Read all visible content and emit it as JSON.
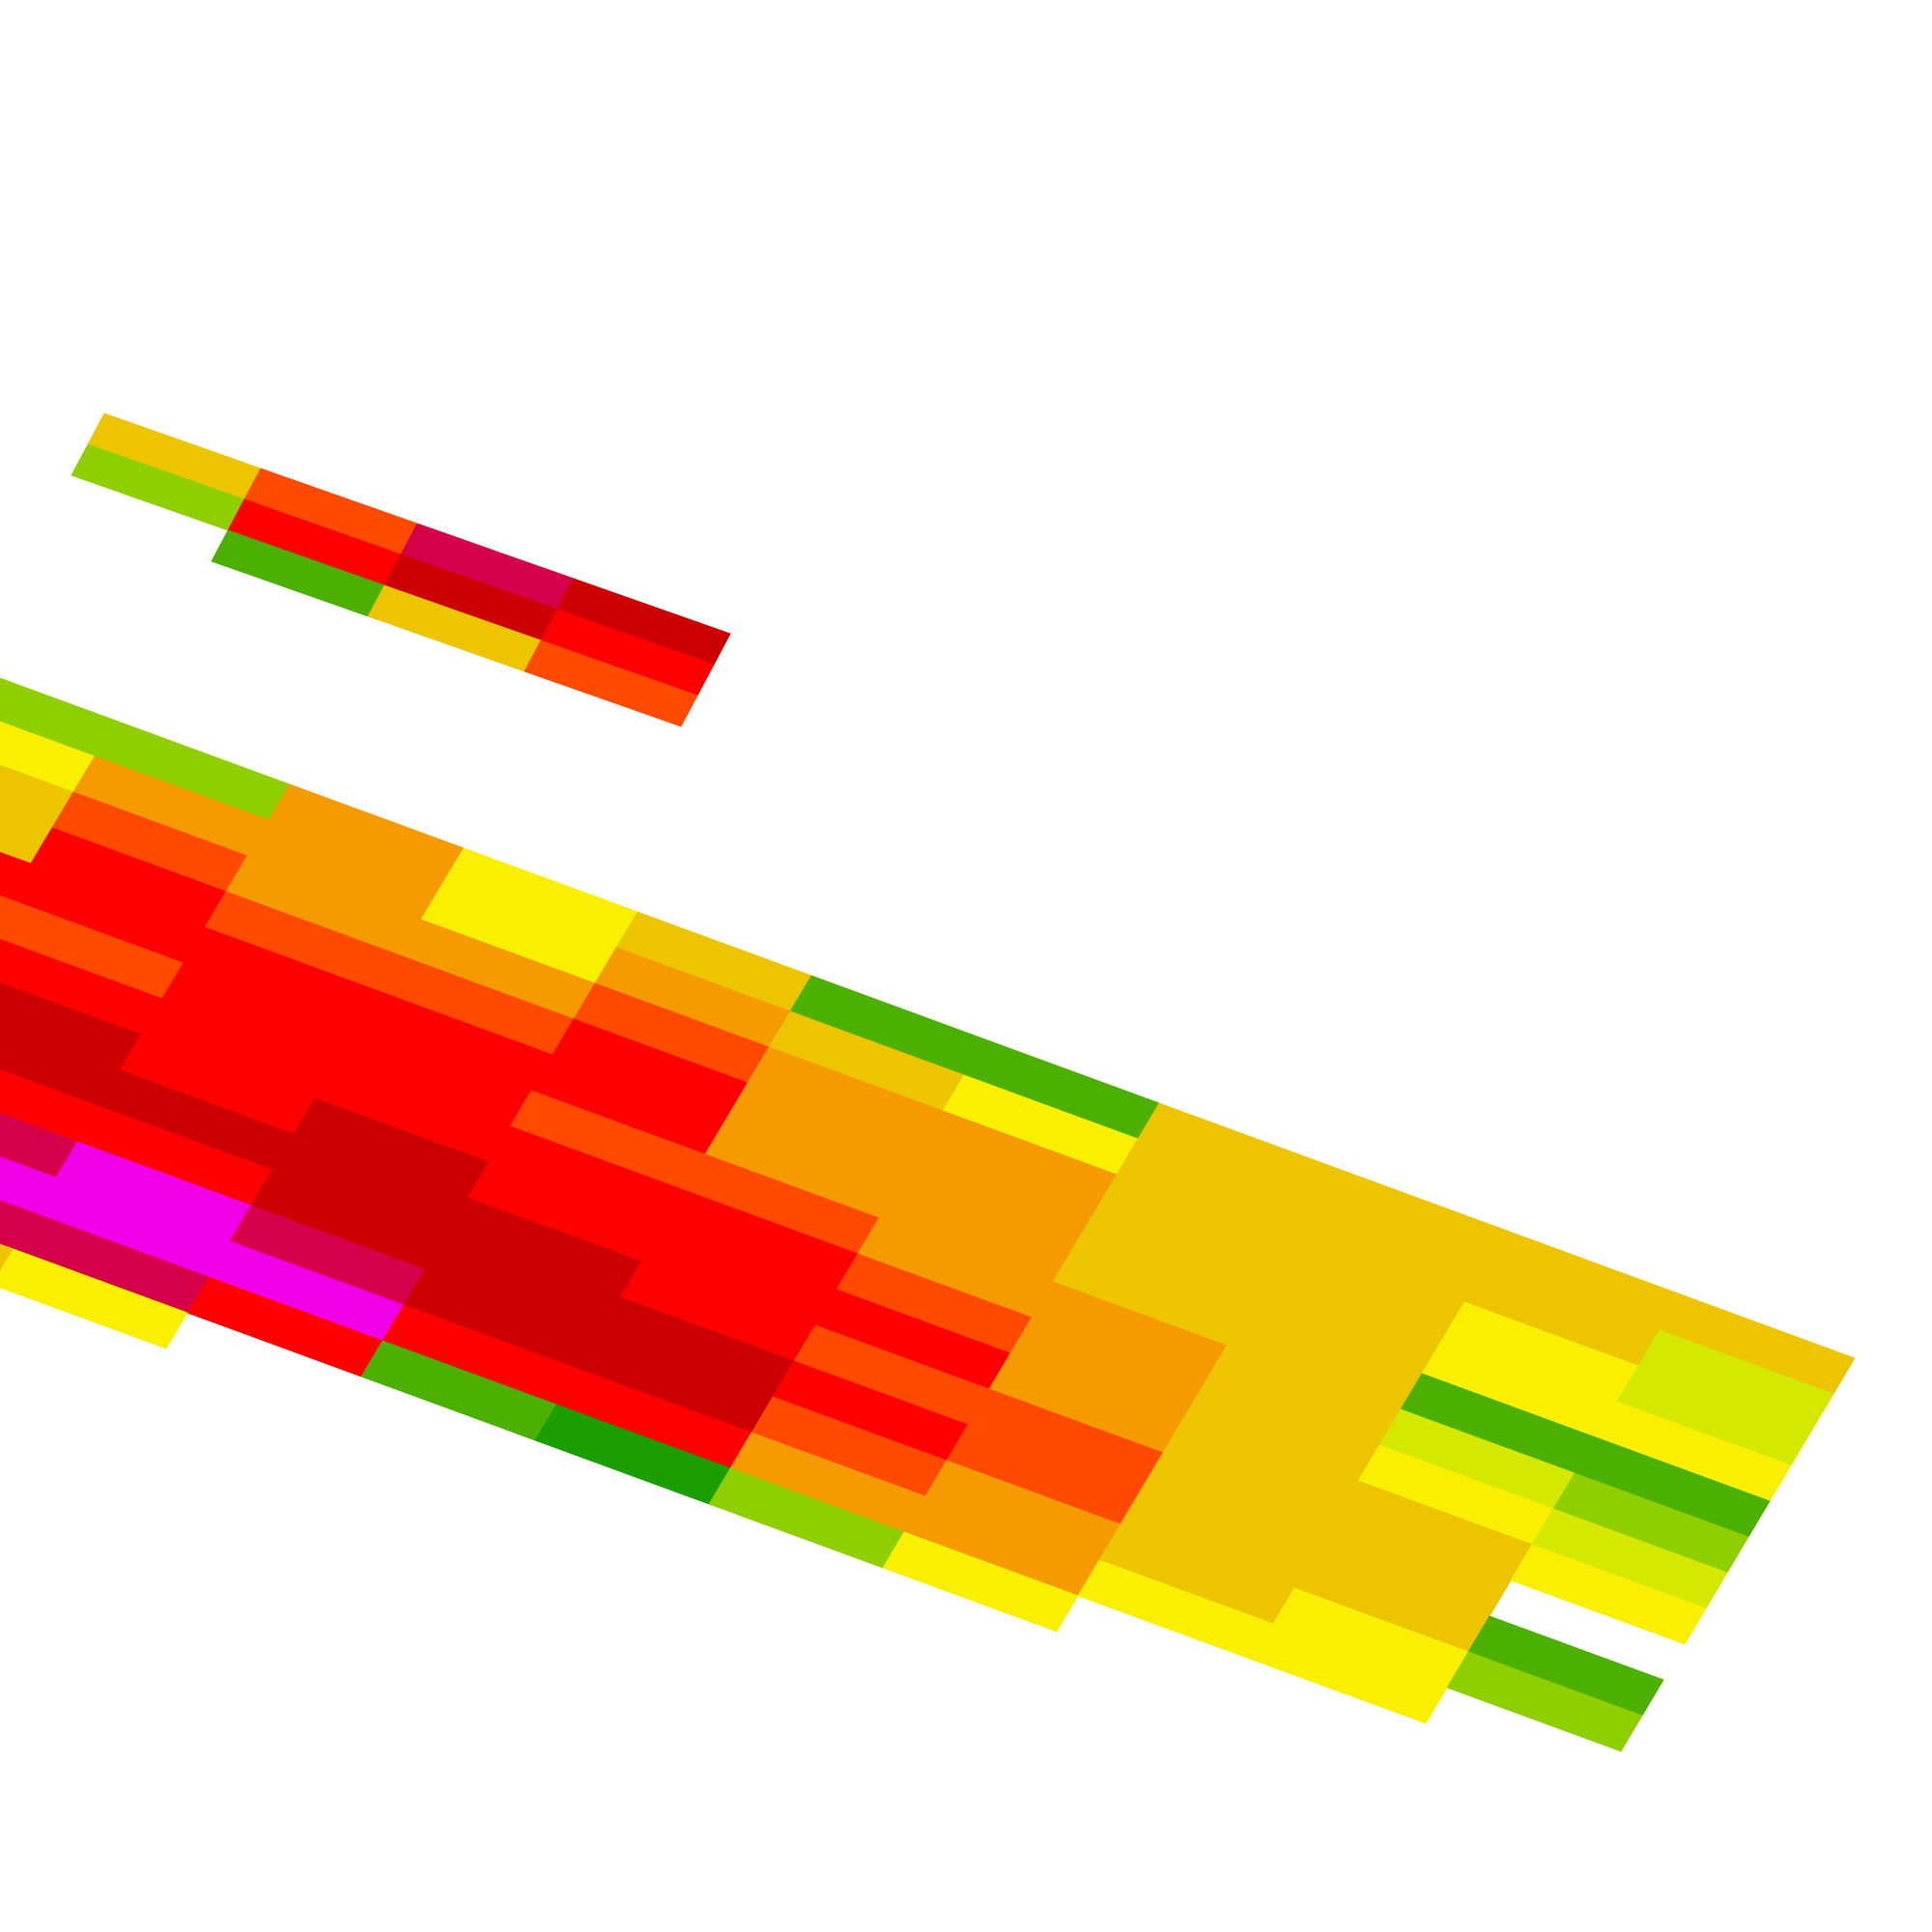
{
  "map": {
    "type": "heatmap-tiles",
    "palette": {
      "dark_green": "#1a9e00",
      "green": "#4bb000",
      "yellow_green": "#8fcf00",
      "lime": "#d4e800",
      "yellow": "#f8f000",
      "gold": "#ecc400",
      "orange": "#f59a00",
      "red_orange": "#ff4a00",
      "red": "#ff0000",
      "dark_red": "#cc0000",
      "crimson": "#d4004a",
      "magenta": "#f000e6"
    }
  }
}
